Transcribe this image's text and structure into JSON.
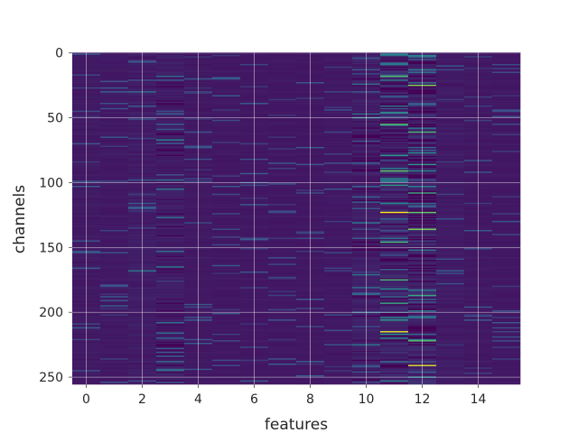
{
  "chart_data": {
    "type": "heatmap",
    "xlabel": "features",
    "ylabel": "channels",
    "x_ticks": [
      "0",
      "2",
      "4",
      "6",
      "8",
      "10",
      "12",
      "14"
    ],
    "y_ticks": [
      "0",
      "50",
      "100",
      "150",
      "200",
      "250"
    ],
    "xlim": [
      -0.5,
      15.5
    ],
    "ylim": [
      255.5,
      -0.5
    ],
    "n_features": 16,
    "n_channels": 256,
    "colormap": "viridis",
    "grid": true,
    "column_activity": [
      0.18,
      0.16,
      0.28,
      0.34,
      0.12,
      0.1,
      0.1,
      0.1,
      0.1,
      0.14,
      0.36,
      0.62,
      0.6,
      0.24,
      0.12,
      0.1
    ],
    "hot_cells": [
      {
        "feature": 11,
        "channel": 123,
        "value": 1.0
      },
      {
        "feature": 11,
        "channel": 215,
        "value": 0.95
      },
      {
        "feature": 12,
        "channel": 241,
        "value": 0.95
      },
      {
        "feature": 12,
        "channel": 123,
        "value": 0.75
      },
      {
        "feature": 12,
        "channel": 136,
        "value": 0.8
      },
      {
        "feature": 12,
        "channel": 25,
        "value": 0.8
      },
      {
        "feature": 11,
        "channel": 18,
        "value": 0.7
      },
      {
        "feature": 11,
        "channel": 55,
        "value": 0.7
      },
      {
        "feature": 11,
        "channel": 91,
        "value": 0.75
      },
      {
        "feature": 11,
        "channel": 146,
        "value": 0.65
      },
      {
        "feature": 11,
        "channel": 175,
        "value": 0.65
      },
      {
        "feature": 11,
        "channel": 193,
        "value": 0.6
      },
      {
        "feature": 12,
        "channel": 61,
        "value": 0.65
      },
      {
        "feature": 12,
        "channel": 108,
        "value": 0.6
      },
      {
        "feature": 12,
        "channel": 187,
        "value": 0.6
      },
      {
        "feature": 12,
        "channel": 222,
        "value": 0.7
      },
      {
        "feature": 3,
        "channel": 67,
        "value": 0.45
      },
      {
        "feature": 3,
        "channel": 105,
        "value": 0.4
      },
      {
        "feature": 3,
        "channel": 165,
        "value": 0.4
      },
      {
        "feature": 2,
        "channel": 30,
        "value": 0.35
      },
      {
        "feature": 2,
        "channel": 168,
        "value": 0.4
      },
      {
        "feature": 10,
        "channel": 131,
        "value": 0.4
      }
    ]
  }
}
